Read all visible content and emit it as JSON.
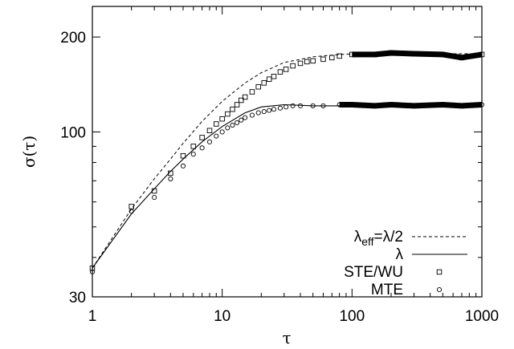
{
  "chart_data": {
    "type": "line",
    "xlabel": "τ",
    "ylabel": "σ(τ)",
    "xscale": "log",
    "yscale": "log",
    "xlim": [
      1,
      1000
    ],
    "ylim": [
      30,
      250
    ],
    "grid": false,
    "legend_position": "bottom-right",
    "xticks": [
      {
        "value": 1,
        "label": "1"
      },
      {
        "value": 10,
        "label": "10"
      },
      {
        "value": 100,
        "label": "100"
      },
      {
        "value": 1000,
        "label": "1000"
      }
    ],
    "yticks": [
      {
        "value": 30,
        "label": "30"
      },
      {
        "value": 100,
        "label": "100"
      },
      {
        "value": 200,
        "label": "200"
      }
    ],
    "series": [
      {
        "legend_main": "λ",
        "legend_sub": "eff",
        "legend_tail": "=λ/2",
        "style": "dashed",
        "x": [
          1,
          2,
          3,
          4,
          5,
          7,
          10,
          15,
          20,
          30,
          50,
          80,
          150,
          300,
          600,
          1000
        ],
        "y": [
          37,
          57,
          71,
          82,
          92,
          108,
          125,
          143,
          154,
          166,
          173,
          176,
          178,
          177,
          177,
          177
        ]
      },
      {
        "name": "λ",
        "style": "solid",
        "x": [
          1,
          2,
          3,
          4,
          5,
          7,
          10,
          15,
          20,
          30,
          50,
          80,
          150,
          300,
          600,
          1000
        ],
        "y": [
          37,
          55,
          66,
          75,
          82,
          93,
          104,
          115,
          120,
          122,
          121,
          121,
          121,
          121,
          121,
          121
        ]
      },
      {
        "name": "STE/WU",
        "style": "square-markers",
        "x": [
          1,
          2,
          3,
          4,
          5,
          6,
          7,
          8,
          9,
          10,
          11,
          12,
          13,
          14,
          15,
          17,
          19,
          21,
          23,
          25,
          28,
          31,
          35,
          40,
          45,
          50,
          60,
          70,
          80,
          100,
          150,
          200,
          300,
          500,
          700,
          1000
        ],
        "y": [
          37,
          58,
          65,
          74,
          84,
          90,
          96,
          101,
          106,
          110,
          114,
          118,
          122,
          126,
          129,
          134,
          139,
          143,
          147,
          150,
          155,
          158,
          162,
          165,
          167,
          168,
          170,
          172,
          174,
          176,
          176,
          178,
          177,
          176,
          172,
          176
        ]
      },
      {
        "name": "MTE",
        "style": "circle-markers",
        "x": [
          1,
          2,
          3,
          4,
          5,
          6,
          7,
          8,
          9,
          10,
          11,
          12,
          13,
          14,
          15,
          17,
          19,
          21,
          23,
          25,
          28,
          31,
          35,
          40,
          50,
          60,
          80,
          100,
          150,
          200,
          300,
          500,
          700,
          1000
        ],
        "y": [
          36,
          56,
          62,
          71,
          78,
          85,
          89,
          93,
          97,
          100,
          103,
          105,
          107,
          109,
          111,
          113,
          115,
          116,
          117,
          118,
          119,
          120,
          121,
          121,
          121,
          121,
          122,
          122,
          121,
          122,
          121,
          122,
          121,
          122
        ]
      }
    ]
  }
}
